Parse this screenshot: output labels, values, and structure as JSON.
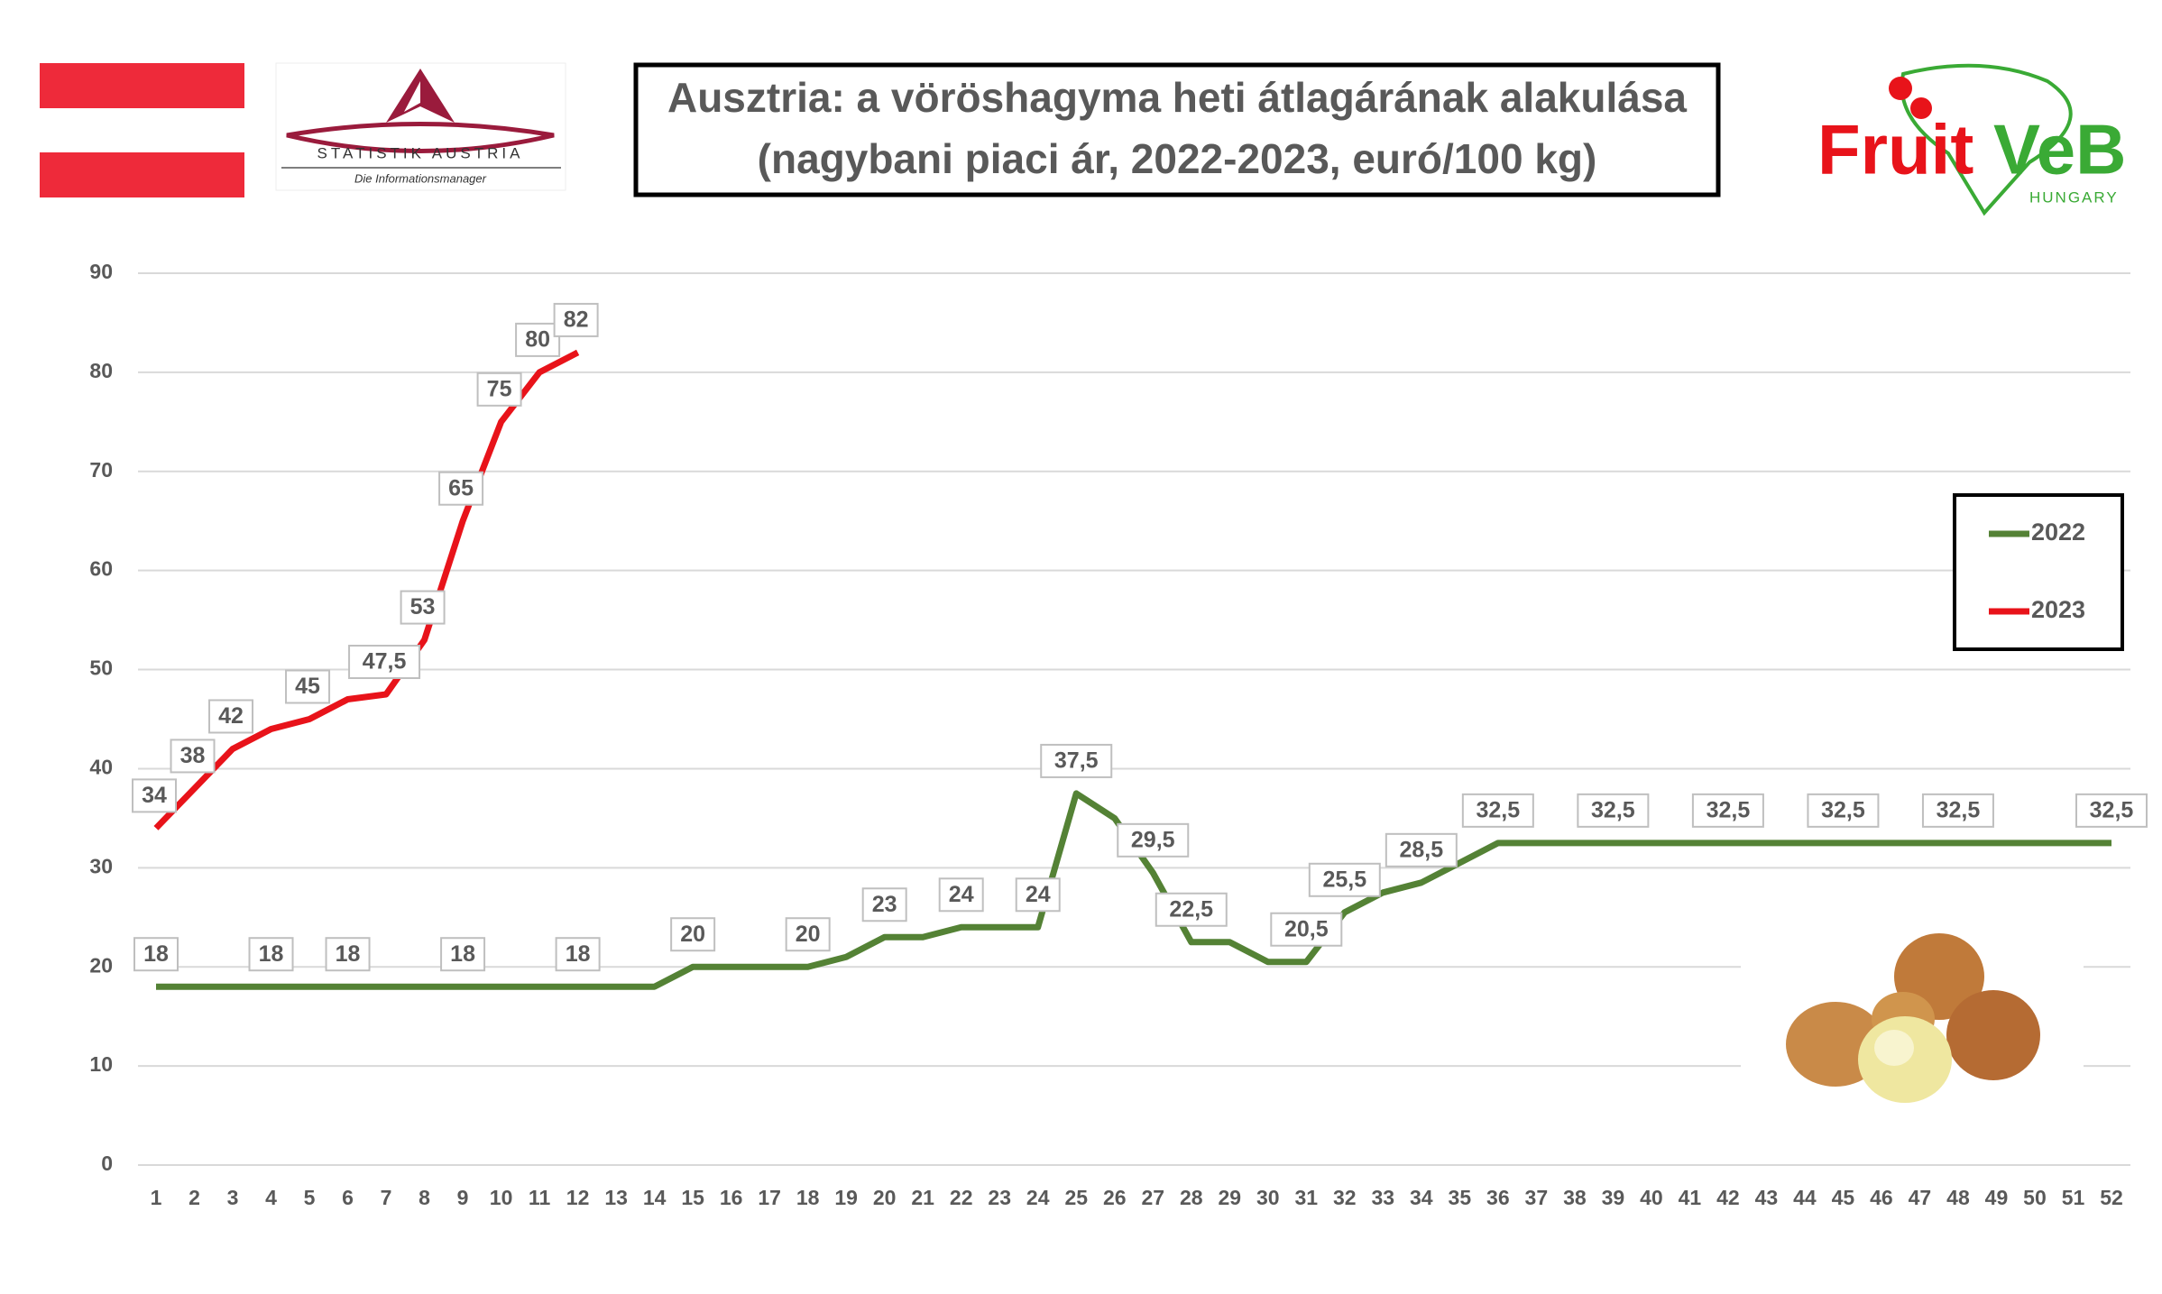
{
  "chart_data": {
    "type": "line",
    "title": [
      "Ausztria: a vöröshagyma heti átlagárának alakulása",
      "(nagybani piaci ár, 2022-2023, euró/100 kg)"
    ],
    "logos": {
      "statistik": [
        "STATISTIK AUSTRIA",
        "Die Informationsmanager"
      ],
      "fruitveb": [
        "Fruit",
        "VeB",
        "HUNGARY"
      ]
    },
    "categories": [
      "1",
      "2",
      "3",
      "4",
      "5",
      "6",
      "7",
      "8",
      "9",
      "10",
      "11",
      "12",
      "13",
      "14",
      "15",
      "16",
      "17",
      "18",
      "19",
      "20",
      "21",
      "22",
      "23",
      "24",
      "25",
      "26",
      "27",
      "28",
      "29",
      "30",
      "31",
      "32",
      "33",
      "34",
      "35",
      "36",
      "37",
      "38",
      "39",
      "40",
      "41",
      "42",
      "43",
      "44",
      "45",
      "46",
      "47",
      "48",
      "49",
      "50",
      "51",
      "52"
    ],
    "ylim": [
      0,
      90
    ],
    "yticks": [
      0,
      10,
      20,
      30,
      40,
      50,
      60,
      70,
      80,
      90
    ],
    "grid": true,
    "legend": "right",
    "series": [
      {
        "name": "2022",
        "color": "#548235",
        "values": [
          18,
          18,
          18,
          18,
          18,
          18,
          18,
          18,
          18,
          18,
          18,
          18,
          18,
          18,
          20,
          20,
          20,
          20,
          21,
          23,
          23,
          24,
          24,
          24,
          37.5,
          35,
          29.5,
          22.5,
          22.5,
          20.5,
          20.5,
          25.5,
          27.5,
          28.5,
          30.5,
          32.5,
          32.5,
          32.5,
          32.5,
          32.5,
          32.5,
          32.5,
          32.5,
          32.5,
          32.5,
          32.5,
          32.5,
          32.5,
          32.5,
          32.5,
          32.5,
          32.5
        ],
        "value_labels": [
          "18",
          null,
          null,
          "18",
          null,
          "18",
          null,
          null,
          "18",
          null,
          null,
          "18",
          null,
          null,
          "20",
          null,
          null,
          "20",
          null,
          "23",
          null,
          "24",
          null,
          "24",
          "37,5",
          null,
          "29,5",
          "22,5",
          null,
          null,
          "20,5",
          "25,5",
          null,
          "28,5",
          null,
          "32,5",
          null,
          null,
          "32,5",
          null,
          null,
          "32,5",
          null,
          null,
          "32,5",
          null,
          null,
          "32,5",
          null,
          null,
          null,
          "32,5"
        ]
      },
      {
        "name": "2023",
        "color": "#e8131a",
        "values": [
          34,
          38,
          42,
          44,
          45,
          47,
          47.5,
          53,
          65,
          75,
          80,
          82,
          null,
          null,
          null,
          null,
          null,
          null,
          null,
          null,
          null,
          null,
          null,
          null,
          null,
          null,
          null,
          null,
          null,
          null,
          null,
          null,
          null,
          null,
          null,
          null,
          null,
          null,
          null,
          null,
          null,
          null,
          null,
          null,
          null,
          null,
          null,
          null,
          null,
          null,
          null,
          null
        ],
        "value_labels": [
          "34",
          "38",
          "42",
          null,
          "45",
          null,
          "47,5",
          "53",
          "65",
          "75",
          "80",
          "82",
          null,
          null,
          null,
          null,
          null,
          null,
          null,
          null,
          null,
          null,
          null,
          null,
          null,
          null,
          null,
          null,
          null,
          null,
          null,
          null,
          null,
          null,
          null,
          null,
          null,
          null,
          null,
          null,
          null,
          null,
          null,
          null,
          null,
          null,
          null,
          null,
          null,
          null,
          null,
          null
        ]
      }
    ]
  }
}
